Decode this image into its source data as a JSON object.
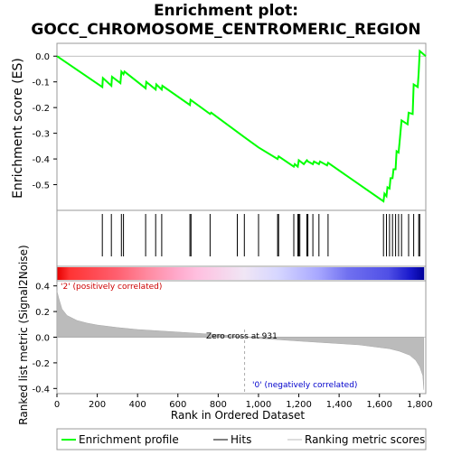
{
  "chart_data": {
    "type": "line",
    "title": "Enrichment plot: GOCC_CHROMOSOME_CENTROMERIC_REGION",
    "xlabel": "Rank in Ordered Dataset",
    "ylabel_top": "Enrichment score (ES)",
    "ylabel_bottom": "Ranked list metric (Signal2Noise)",
    "xlim": [
      0,
      1830
    ],
    "x_ticks": [
      0,
      200,
      400,
      600,
      800,
      1000,
      1200,
      1400,
      1600,
      1800
    ],
    "x_tick_labels": [
      "0",
      "200",
      "400",
      "600",
      "800",
      "1,000",
      "1,200",
      "1,400",
      "1,600",
      "1,800"
    ],
    "es_ylim": [
      -0.6,
      0.05
    ],
    "es_ticks": [
      0.0,
      -0.1,
      -0.2,
      -0.3,
      -0.4,
      -0.5
    ],
    "es_tick_labels": [
      "0.0",
      "-0.1",
      "-0.2",
      "-0.3",
      "-0.4",
      "-0.5"
    ],
    "metric_ylim": [
      -0.44,
      0.44
    ],
    "metric_ticks": [
      0.4,
      0.2,
      0.0,
      -0.2,
      -0.4
    ],
    "metric_tick_labels": [
      "0.4",
      "0.2",
      "0.0",
      "-0.2",
      "-0.4"
    ],
    "series": [
      {
        "name": "Enrichment profile",
        "color": "#00ff00",
        "x": [
          0,
          225,
          228,
          270,
          273,
          315,
          320,
          330,
          335,
          440,
          443,
          490,
          493,
          520,
          523,
          660,
          663,
          760,
          765,
          930,
          1000,
          1095,
          1100,
          1175,
          1180,
          1195,
          1200,
          1225,
          1240,
          1245,
          1270,
          1275,
          1300,
          1305,
          1340,
          1345,
          1620,
          1625,
          1635,
          1640,
          1650,
          1655,
          1665,
          1670,
          1680,
          1685,
          1695,
          1700,
          1710,
          1740,
          1745,
          1765,
          1770,
          1790,
          1795,
          1800,
          1830
        ],
        "y": [
          0.0,
          -0.12,
          -0.085,
          -0.115,
          -0.08,
          -0.105,
          -0.06,
          -0.07,
          -0.06,
          -0.125,
          -0.1,
          -0.13,
          -0.11,
          -0.13,
          -0.115,
          -0.19,
          -0.17,
          -0.225,
          -0.22,
          -0.315,
          -0.355,
          -0.4,
          -0.39,
          -0.43,
          -0.42,
          -0.43,
          -0.405,
          -0.42,
          -0.405,
          -0.41,
          -0.42,
          -0.41,
          -0.42,
          -0.41,
          -0.425,
          -0.415,
          -0.565,
          -0.535,
          -0.545,
          -0.51,
          -0.515,
          -0.475,
          -0.475,
          -0.44,
          -0.44,
          -0.37,
          -0.375,
          -0.335,
          -0.25,
          -0.265,
          -0.22,
          -0.225,
          -0.11,
          -0.12,
          -0.06,
          0.02,
          0.0
        ]
      }
    ],
    "hits": [
      225,
      270,
      320,
      330,
      440,
      490,
      520,
      660,
      665,
      760,
      895,
      930,
      1000,
      1095,
      1100,
      1175,
      1195,
      1200,
      1205,
      1240,
      1245,
      1270,
      1300,
      1345,
      1620,
      1635,
      1650,
      1665,
      1680,
      1695,
      1710,
      1745,
      1770,
      1795,
      1800
    ],
    "metric_curve": {
      "x": [
        0,
        10,
        25,
        50,
        100,
        150,
        200,
        300,
        400,
        500,
        600,
        700,
        800,
        900,
        931,
        1000,
        1100,
        1200,
        1300,
        1400,
        1500,
        1600,
        1650,
        1700,
        1750,
        1780,
        1800,
        1815,
        1820
      ],
      "y": [
        0.36,
        0.3,
        0.22,
        0.17,
        0.13,
        0.11,
        0.095,
        0.075,
        0.06,
        0.05,
        0.04,
        0.03,
        0.02,
        0.01,
        0.0,
        -0.01,
        -0.02,
        -0.03,
        -0.04,
        -0.05,
        -0.06,
        -0.08,
        -0.09,
        -0.11,
        -0.14,
        -0.18,
        -0.23,
        -0.3,
        -0.41
      ]
    },
    "heat_band": {
      "stops": [
        {
          "x": 0,
          "color": "#e60000"
        },
        {
          "x": 60,
          "color": "#ff3333"
        },
        {
          "x": 300,
          "color": "#ff6070"
        },
        {
          "x": 450,
          "color": "#ff8aa0"
        },
        {
          "x": 600,
          "color": "#ffaacc"
        },
        {
          "x": 700,
          "color": "#ffc0e0"
        },
        {
          "x": 931,
          "color": "#f0e6f5"
        },
        {
          "x": 1100,
          "color": "#d6d6ff"
        },
        {
          "x": 1300,
          "color": "#a8a8ff"
        },
        {
          "x": 1450,
          "color": "#7070f0"
        },
        {
          "x": 1650,
          "color": "#5050e6"
        },
        {
          "x": 1760,
          "color": "#1a1acc"
        },
        {
          "x": 1830,
          "color": "#000099"
        }
      ]
    },
    "annotations": {
      "positive": "'2' (positively correlated)",
      "zero_cross": "Zero cross at 931",
      "negative": "'0' (negatively correlated)",
      "zero_cross_x": 931
    },
    "legend": [
      {
        "label": "Enrichment profile",
        "color": "#00ff00"
      },
      {
        "label": "Hits",
        "color": "#000000"
      },
      {
        "label": "Ranking metric scores",
        "color": "#bbbbbb"
      }
    ],
    "legend_position": "bottom",
    "grid": false
  }
}
